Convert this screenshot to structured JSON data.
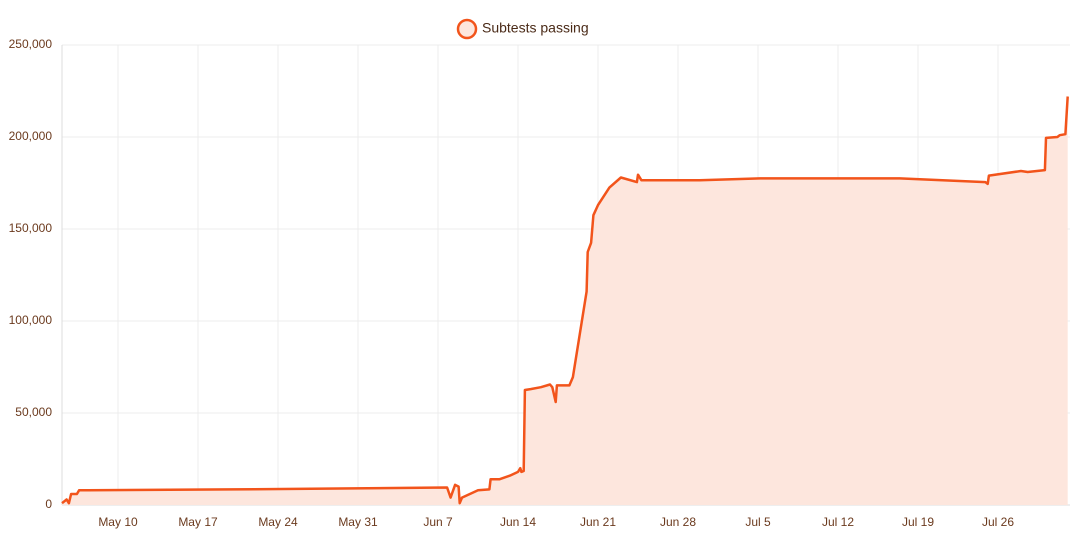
{
  "chart_data": {
    "type": "area",
    "legend_position": "top",
    "grid": true,
    "x": [
      5.1,
      5.5,
      5.7,
      5.9,
      6.4,
      6.6,
      7.4,
      20,
      38.8,
      39.1,
      39.5,
      39.8,
      39.9,
      40.1,
      41.5,
      42.5,
      42.6,
      43.4,
      44.3,
      45.0,
      45.2,
      45.3,
      45.5,
      45.6,
      46.1,
      47.0,
      47.8,
      48.0,
      48.3,
      48.4,
      49.5,
      49.8,
      51.0,
      51.1,
      51.4,
      51.6,
      52.0,
      53.0,
      54.0,
      55.4,
      55.5,
      55.8,
      60.9,
      66.2,
      78.4,
      85.9,
      86.1,
      86.2,
      89.0,
      89.6,
      91.1,
      91.2,
      92.2,
      92.4,
      92.9,
      93.1
    ],
    "series": [
      {
        "name": "Subtests passing",
        "color": "#f2541b",
        "fill": "#fde6dd",
        "values": [
          1000,
          3000,
          1000,
          6000,
          6000,
          8000,
          8000,
          8500,
          9500,
          4000,
          11000,
          10000,
          1000,
          4000,
          8000,
          8500,
          14000,
          14000,
          16000,
          18000,
          20000,
          18000,
          18500,
          62500,
          63000,
          64000,
          65500,
          64000,
          56000,
          65000,
          65000,
          69500,
          116000,
          137500,
          142500,
          157500,
          163000,
          172500,
          178000,
          175500,
          179500,
          176500,
          176500,
          177500,
          177500,
          175500,
          174500,
          179000,
          181500,
          181000,
          182000,
          199500,
          200000,
          201000,
          201500,
          222000
        ]
      }
    ],
    "xlim": [
      5.1,
      93.3
    ],
    "xticks": [
      {
        "value": 10,
        "label": "May 10"
      },
      {
        "value": 17,
        "label": "May 17"
      },
      {
        "value": 24,
        "label": "May 24"
      },
      {
        "value": 31,
        "label": "May 31"
      },
      {
        "value": 38,
        "label": "Jun 7"
      },
      {
        "value": 45,
        "label": "Jun 14"
      },
      {
        "value": 52,
        "label": "Jun 21"
      },
      {
        "value": 59,
        "label": "Jun 28"
      },
      {
        "value": 66,
        "label": "Jul 5"
      },
      {
        "value": 73,
        "label": "Jul 12"
      },
      {
        "value": 80,
        "label": "Jul 19"
      },
      {
        "value": 87,
        "label": "Jul 26"
      }
    ],
    "ylim": [
      0,
      250000
    ],
    "yticks": [
      0,
      {
        "value": 50000,
        "label": "50,000"
      },
      {
        "value": 100000,
        "label": "100,000"
      },
      {
        "value": 150000,
        "label": "150,000"
      },
      {
        "value": 200000,
        "label": "200,000"
      },
      {
        "value": 250000,
        "label": "250,000"
      }
    ]
  }
}
